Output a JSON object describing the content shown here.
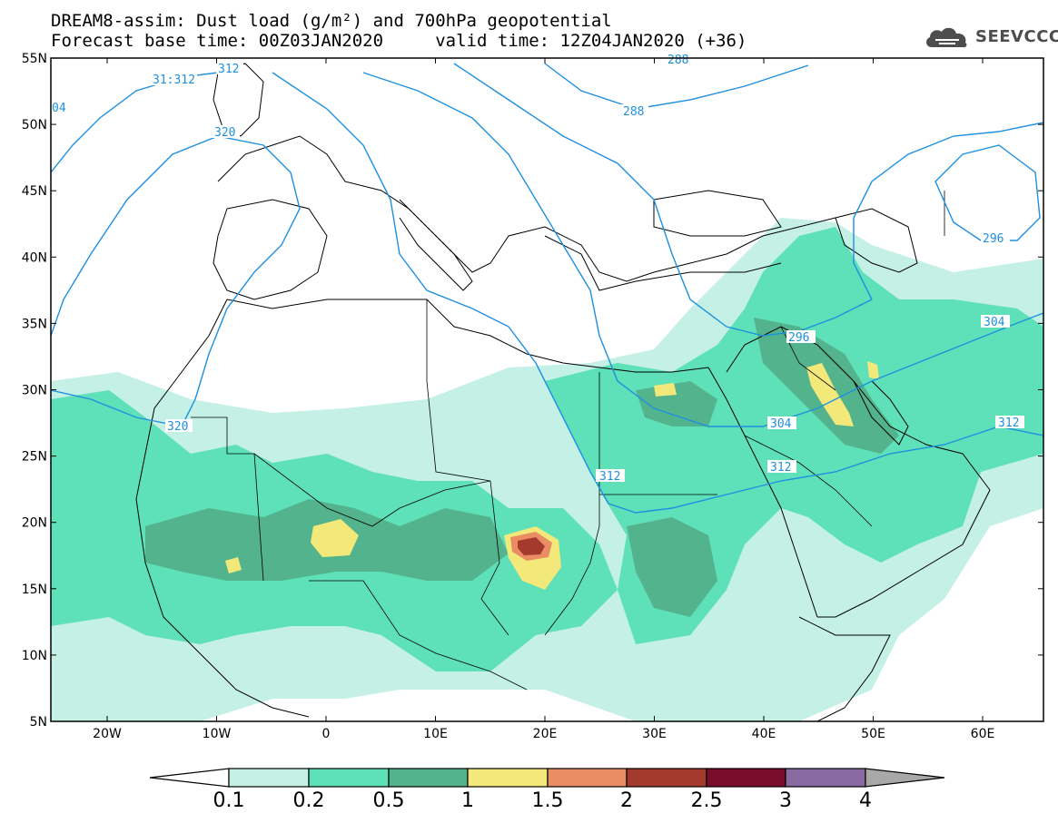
{
  "header": {
    "title_line1": "DREAM8-assim: Dust load (g/m²) and 700hPa geopotential",
    "title_line2": "Forecast base time: 00Z03JAN2020     valid time: 12Z04JAN2020 (+36)"
  },
  "logo": {
    "text": "SEEVCCC",
    "icon": "cloud-icon"
  },
  "map": {
    "lat_labels": [
      "55N",
      "50N",
      "45N",
      "40N",
      "35N",
      "30N",
      "25N",
      "20N",
      "15N",
      "10N",
      "5N"
    ],
    "lon_labels": [
      "20W",
      "10W",
      "0",
      "10E",
      "20E",
      "30E",
      "40E",
      "50E",
      "60E"
    ],
    "contour_labels": [
      "31:312",
      "312",
      "320",
      "320",
      "288",
      "296",
      "296",
      "304",
      "304",
      "312",
      "312",
      "312",
      "04",
      "288"
    ]
  },
  "colorbar": {
    "labels": [
      "0.1",
      "0.2",
      "0.5",
      "1",
      "1.5",
      "2",
      "2.5",
      "3",
      "4"
    ],
    "colors": {
      "under": "#ffffff",
      "bins": [
        "#c4f0e6",
        "#5ee0b8",
        "#53b38c",
        "#f3e97a",
        "#ea8c64",
        "#a43a2e",
        "#7a0c2c",
        "#8a6aa1"
      ],
      "over": "#a8a8a8"
    }
  }
}
